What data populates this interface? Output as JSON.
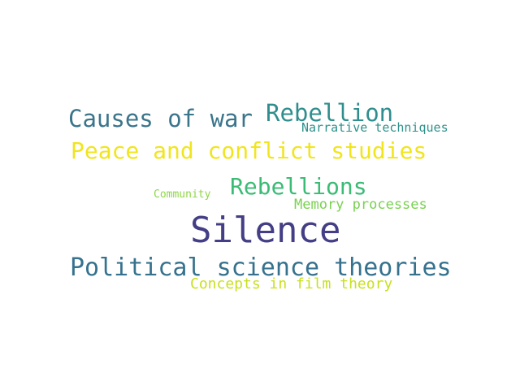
{
  "words": [
    {
      "id": "silence",
      "text": "Silence",
      "color": "#433e85"
    },
    {
      "id": "political",
      "text": "Political science theories",
      "color": "#36728e"
    },
    {
      "id": "peace",
      "text": "Peace and conflict studies",
      "color": "#f1e51d"
    },
    {
      "id": "causes",
      "text": "Causes of war",
      "color": "#3b758b"
    },
    {
      "id": "rebellion",
      "text": "Rebellion",
      "color": "#2f8e8d"
    },
    {
      "id": "rebellions",
      "text": "Rebellions",
      "color": "#3bbb75"
    },
    {
      "id": "narrative",
      "text": "Narrative techniques",
      "color": "#2d918c"
    },
    {
      "id": "memory",
      "text": "Memory processes",
      "color": "#7ad151"
    },
    {
      "id": "concepts",
      "text": "Concepts in film theory",
      "color": "#c8e020"
    },
    {
      "id": "community",
      "text": "Community",
      "color": "#8ed645"
    }
  ]
}
